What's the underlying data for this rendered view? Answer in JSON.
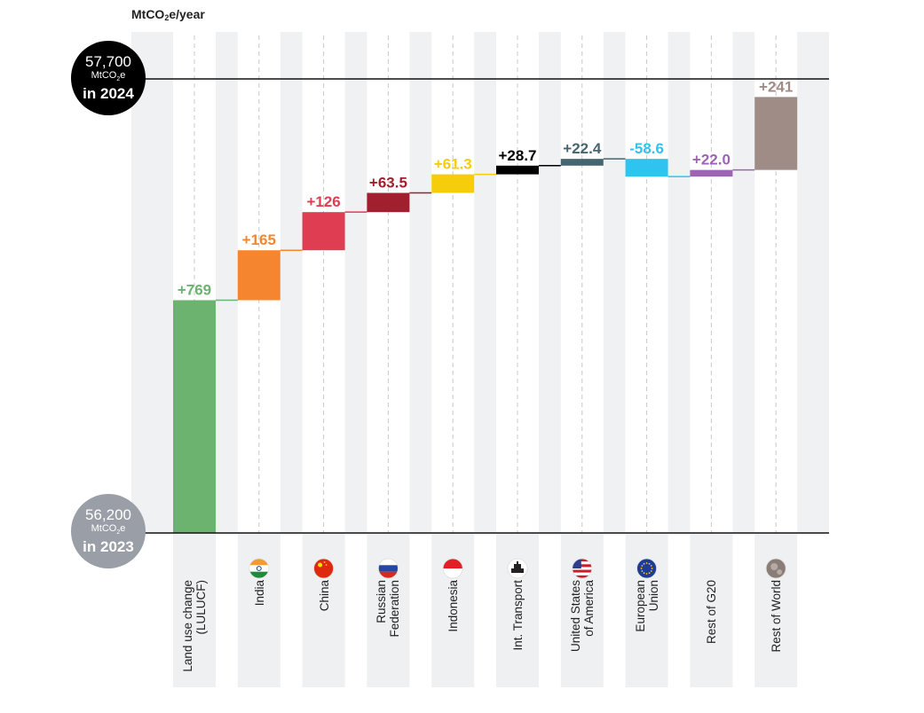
{
  "unit_label": {
    "pre": "MtCO",
    "sub": "2",
    "post": "e/year"
  },
  "badges": {
    "top": {
      "value": "57,700",
      "unit_pre": "MtCO",
      "unit_sub": "2",
      "unit_post": "e",
      "year": "in 2024"
    },
    "bottom": {
      "value": "56,200",
      "unit_pre": "MtCO",
      "unit_sub": "2",
      "unit_post": "e",
      "year": "in 2023"
    }
  },
  "chart_data": {
    "type": "bar",
    "subtype": "waterfall",
    "ylabel": "MtCO2e/year",
    "start": 56200,
    "end": 57700,
    "categories": [
      "Land use change (LULUCF)",
      "India",
      "China",
      "Russian Federation",
      "Indonesia",
      "Int. Transport",
      "United States of America",
      "European Union",
      "Rest of G20",
      "Rest of World"
    ],
    "values": [
      769,
      165,
      126,
      63.5,
      61.3,
      28.7,
      22.4,
      -58.6,
      22.0,
      241
    ],
    "labels": [
      "+769",
      "+165",
      "+126",
      "+63.5",
      "+61.3",
      "+28.7",
      "+22.4",
      "-58.6",
      "+22.0",
      "+241"
    ],
    "colors": [
      "#6bb36f",
      "#f5862f",
      "#df3e52",
      "#a21f30",
      "#f6cd0a",
      "#000000",
      "#456570",
      "#2fc3f0",
      "#9c64b3",
      "#a08c86"
    ],
    "ylim": [
      56200,
      57700
    ]
  },
  "category_display": [
    "Land use change\n(LULUCF)",
    "India",
    "China",
    "Russian\nFederation",
    "Indonesia",
    "Int. Transport",
    "United States\nof America",
    "European\nUnion",
    "Rest of G20",
    "Rest of World"
  ],
  "icons": [
    "",
    "flag-india-icon",
    "flag-china-icon",
    "flag-russia-icon",
    "flag-indonesia-icon",
    "ship-icon",
    "flag-usa-icon",
    "flag-eu-icon",
    "",
    "globe-icon"
  ]
}
